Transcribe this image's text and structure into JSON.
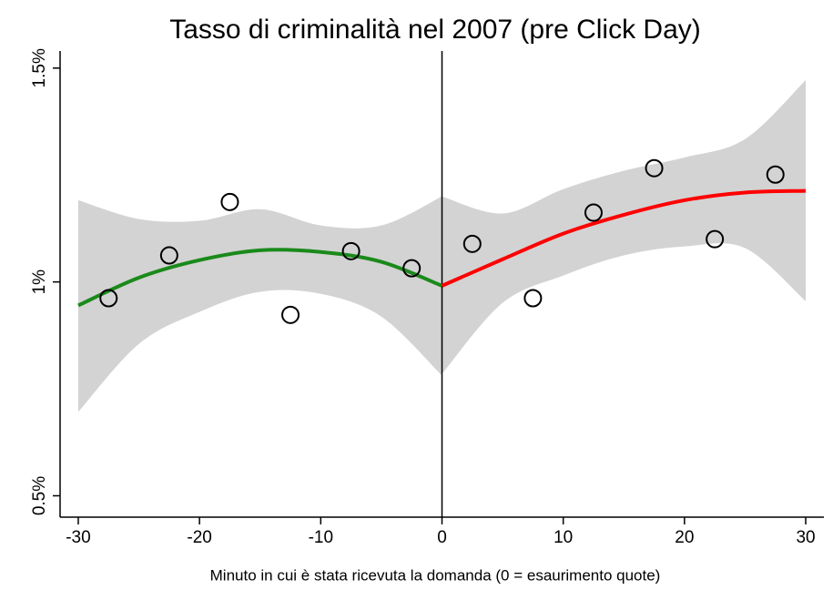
{
  "chart_data": {
    "type": "scatter",
    "title": "Tasso di criminalità nel 2007 (pre Click Day)",
    "x_label": "Minuto in cui è stata ricevuta la domanda (0 = esaurimento quote)",
    "x": [
      -27.5,
      -22.5,
      -17.5,
      -12.5,
      -7.5,
      -2.5,
      2.5,
      7.5,
      12.5,
      17.5,
      22.5,
      27.5
    ],
    "values": [
      0.962,
      1.062,
      1.187,
      0.923,
      1.072,
      1.032,
      1.089,
      0.962,
      1.162,
      1.266,
      1.1,
      1.251
    ],
    "fits": [
      {
        "color": "#1a8a1a",
        "x": [
          -30,
          -25,
          -20,
          -15,
          -10,
          -5,
          0
        ],
        "values": [
          0.945,
          1.01,
          1.051,
          1.074,
          1.07,
          1.047,
          0.991
        ]
      },
      {
        "color": "#ff0000",
        "x": [
          0,
          5,
          10,
          15,
          20,
          25,
          30
        ],
        "values": [
          0.991,
          1.053,
          1.113,
          1.157,
          1.191,
          1.209,
          1.213
        ]
      }
    ],
    "bands": [
      {
        "color": "#d3d3d3",
        "x": [
          -30,
          -25,
          -20,
          -15,
          -10,
          -5,
          0
        ],
        "lower": [
          0.696,
          0.855,
          0.93,
          0.977,
          0.972,
          0.919,
          0.781
        ],
        "upper": [
          1.191,
          1.147,
          1.143,
          1.17,
          1.132,
          1.132,
          1.2
        ]
      },
      {
        "color": "#d3d3d3",
        "x": [
          0,
          5,
          10,
          15,
          20,
          25,
          30
        ],
        "lower": [
          0.785,
          0.951,
          1.015,
          1.062,
          1.083,
          1.079,
          0.955
        ],
        "upper": [
          1.2,
          1.16,
          1.217,
          1.26,
          1.291,
          1.334,
          1.472
        ]
      }
    ],
    "vline": 0,
    "xlim": [
      -31.5,
      31.5
    ],
    "ylim": [
      0.45,
      1.54
    ],
    "xticks": [
      -30,
      -20,
      -10,
      0,
      10,
      20,
      30
    ],
    "yticks": [
      {
        "value": 0.5,
        "label": "0.5%"
      },
      {
        "value": 1,
        "label": "1%"
      },
      {
        "value": 1.5,
        "label": "1.5%"
      }
    ]
  }
}
